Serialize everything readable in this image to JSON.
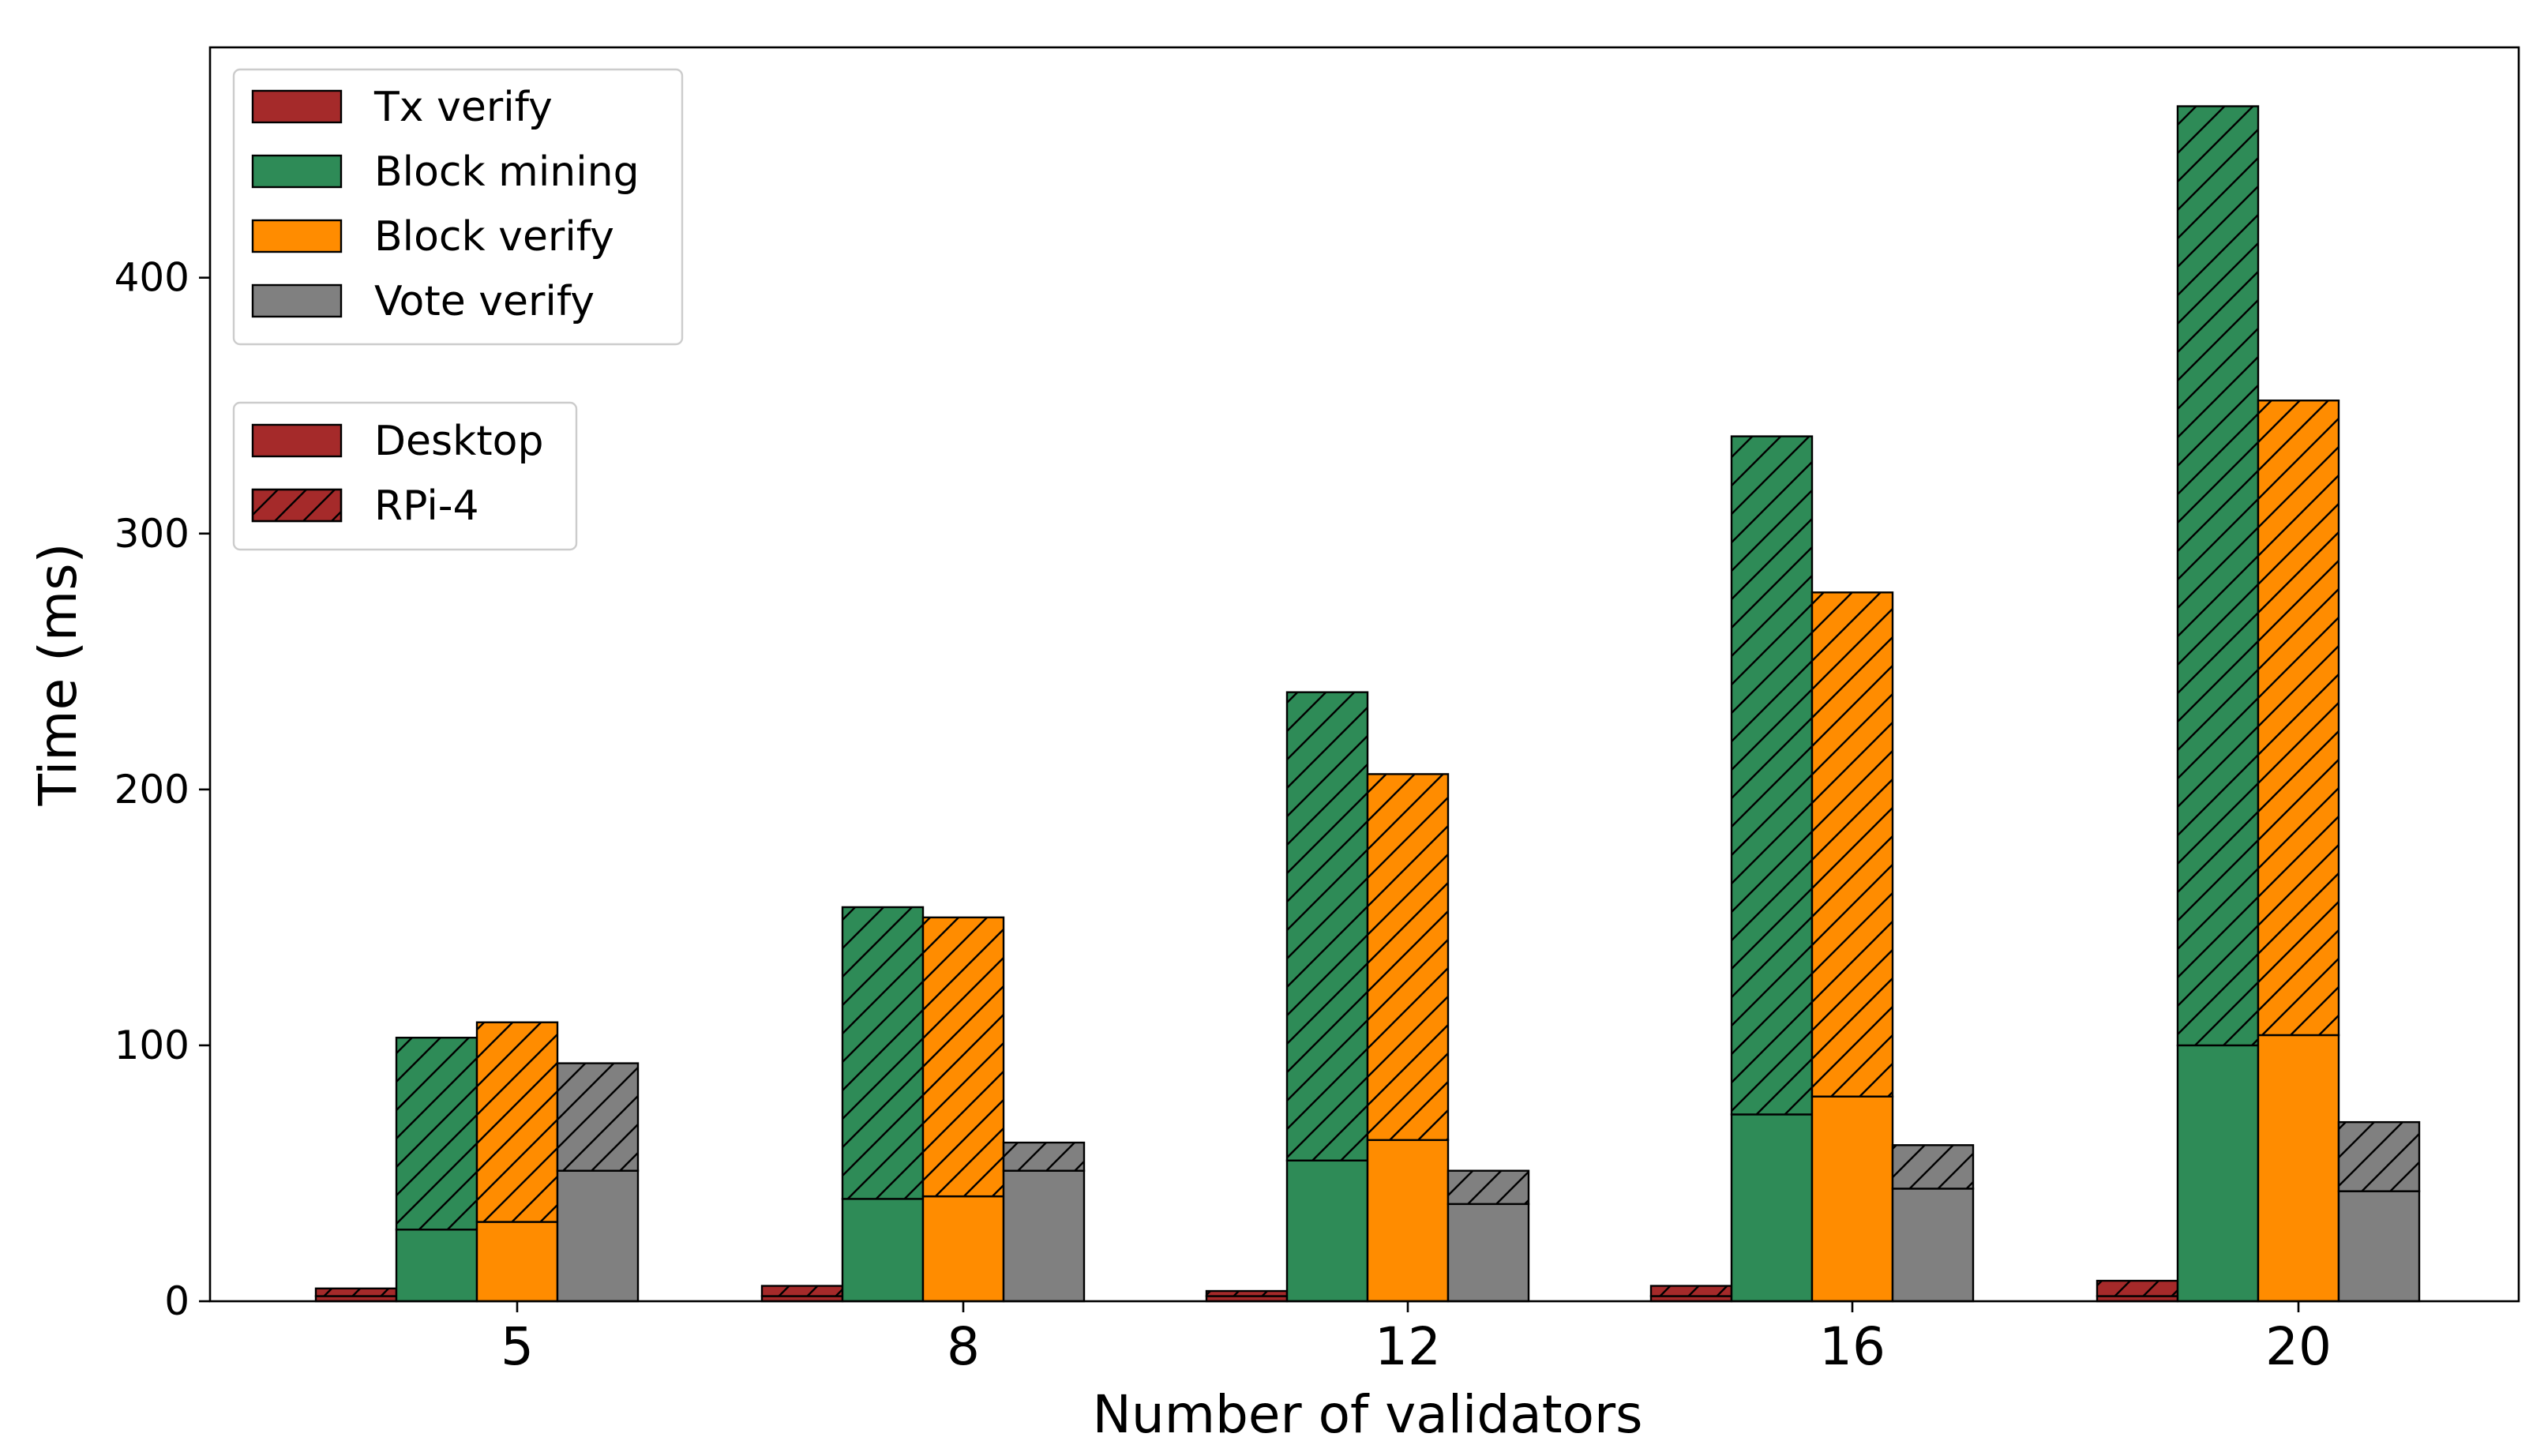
{
  "chart_data": {
    "type": "bar",
    "stacked": true,
    "xlabel": "Number of validators",
    "ylabel": "Time (ms)",
    "ylim": [
      0,
      490
    ],
    "yticks": [
      0,
      100,
      200,
      300,
      400
    ],
    "categories": [
      "5",
      "8",
      "12",
      "16",
      "20"
    ],
    "series": [
      {
        "name": "Tx verify",
        "color": "#a52a2a",
        "desktop": [
          2,
          2,
          2,
          2,
          2
        ],
        "rpi4_total": [
          5,
          6,
          4,
          6,
          8
        ]
      },
      {
        "name": "Block mining",
        "color": "#2e8b57",
        "desktop": [
          28,
          40,
          55,
          73,
          100
        ],
        "rpi4_total": [
          103,
          154,
          238,
          338,
          467
        ]
      },
      {
        "name": "Block verify",
        "color": "#ff8c00",
        "desktop": [
          31,
          41,
          63,
          80,
          104
        ],
        "rpi4_total": [
          109,
          150,
          206,
          277,
          352
        ]
      },
      {
        "name": "Vote verify",
        "color": "#808080",
        "desktop": [
          51,
          51,
          38,
          44,
          43
        ],
        "rpi4_total": [
          93,
          62,
          51,
          61,
          70
        ]
      }
    ],
    "legend_metrics": [
      "Tx verify",
      "Block mining",
      "Block verify",
      "Vote verify"
    ],
    "legend_platforms": [
      "Desktop",
      "RPi-4"
    ],
    "legend_position": "top-left"
  }
}
